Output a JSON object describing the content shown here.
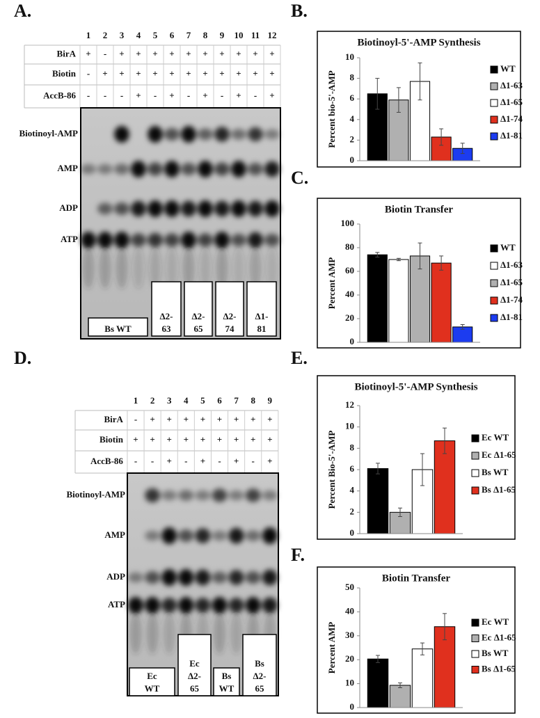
{
  "gel_a": {
    "label": "A.",
    "lanes": [
      "1",
      "2",
      "3",
      "4",
      "5",
      "6",
      "7",
      "8",
      "9",
      "10",
      "11",
      "12"
    ],
    "rows": [
      {
        "name": "BirA",
        "marks": [
          "+",
          "-",
          "+",
          "+",
          "+",
          "+",
          "+",
          "+",
          "+",
          "+",
          "+",
          "+"
        ]
      },
      {
        "name": "Biotin",
        "marks": [
          "-",
          "+",
          "+",
          "+",
          "+",
          "+",
          "+",
          "+",
          "+",
          "+",
          "+",
          "+"
        ]
      },
      {
        "name": "AccB-86",
        "marks": [
          "-",
          "-",
          "-",
          "+",
          "-",
          "+",
          "-",
          "+",
          "-",
          "+",
          "-",
          "+"
        ]
      }
    ],
    "bands": [
      "Biotinoyl-AMP",
      "AMP",
      "ADP",
      "ATP"
    ],
    "boxes": [
      {
        "lines": [
          "Bs WT"
        ]
      },
      {
        "lines": [
          "Δ2-",
          "63"
        ]
      },
      {
        "lines": [
          "Δ2-",
          "65"
        ]
      },
      {
        "lines": [
          "Δ2-",
          "74"
        ]
      },
      {
        "lines": [
          "Δ1-",
          "81"
        ]
      }
    ]
  },
  "gel_d": {
    "label": "D.",
    "lanes": [
      "1",
      "2",
      "3",
      "4",
      "5",
      "6",
      "7",
      "8",
      "9"
    ],
    "rows": [
      {
        "name": "BirA",
        "marks": [
          "-",
          "+",
          "+",
          "+",
          "+",
          "+",
          "+",
          "+",
          "+"
        ]
      },
      {
        "name": "Biotin",
        "marks": [
          "+",
          "+",
          "+",
          "+",
          "+",
          "+",
          "+",
          "+",
          "+"
        ]
      },
      {
        "name": "AccB-86",
        "marks": [
          "-",
          "-",
          "+",
          "-",
          "+",
          "-",
          "+",
          "-",
          "+"
        ]
      }
    ],
    "bands": [
      "Biotinoyl-AMP",
      "AMP",
      "ADP",
      "ATP"
    ],
    "boxes": [
      {
        "lines": [
          "Ec",
          "WT"
        ]
      },
      {
        "lines": [
          "Ec",
          "Δ2-",
          "65"
        ]
      },
      {
        "lines": [
          "Bs",
          "WT"
        ]
      },
      {
        "lines": [
          "Bs",
          "Δ2-",
          "65"
        ]
      }
    ]
  },
  "chart_data": [
    {
      "type": "bar",
      "label": "B.",
      "title": "Biotinoyl-5'-AMP Synthesis",
      "ylabel": "Percent bio-5'-AMP",
      "categories": [
        "WT",
        "Δ1-63",
        "Δ1-65",
        "Δ1-74",
        "Δ1-81"
      ],
      "values": [
        6.5,
        5.9,
        7.7,
        2.3,
        1.2
      ],
      "errors": [
        1.5,
        1.2,
        1.8,
        0.8,
        0.5
      ],
      "colors": [
        "#000000",
        "#b0b0b0",
        "#ffffff",
        "#e0301e",
        "#1c3cf0"
      ],
      "ylim": [
        0,
        10
      ],
      "yticks": [
        0,
        2,
        4,
        6,
        8,
        10
      ]
    },
    {
      "type": "bar",
      "label": "C.",
      "title": "Biotin Transfer",
      "ylabel": "Percent AMP",
      "categories": [
        "WT",
        "Δ1-63",
        "Δ1-65",
        "Δ1-74",
        "Δ1-81"
      ],
      "values": [
        74,
        70,
        73,
        67,
        13
      ],
      "errors": [
        2,
        1,
        11,
        6,
        2
      ],
      "colors": [
        "#000000",
        "#ffffff",
        "#b0b0b0",
        "#e0301e",
        "#1c3cf0"
      ],
      "ylim": [
        0,
        100
      ],
      "yticks": [
        0,
        20,
        40,
        60,
        80,
        100
      ]
    },
    {
      "type": "bar",
      "label": "E.",
      "title": "Biotinoyl-5'-AMP Synthesis",
      "ylabel": "Percent Bio-5'-AMP",
      "categories": [
        "Ec WT",
        "Ec Δ1-65",
        "Bs WT",
        "Bs Δ1-65"
      ],
      "values": [
        6.1,
        2.0,
        6.0,
        8.7
      ],
      "errors": [
        0.5,
        0.4,
        1.5,
        1.2
      ],
      "colors": [
        "#000000",
        "#b0b0b0",
        "#ffffff",
        "#e0301e"
      ],
      "ylim": [
        0,
        12
      ],
      "yticks": [
        0,
        2,
        4,
        6,
        8,
        10,
        12
      ]
    },
    {
      "type": "bar",
      "label": "F.",
      "title": "Biotin Transfer",
      "ylabel": "Percent AMP",
      "categories": [
        "Ec WT",
        "Ec Δ1-65",
        "Bs WT",
        "Bs Δ1-65"
      ],
      "values": [
        20.3,
        9.3,
        24.5,
        33.8
      ],
      "errors": [
        1.5,
        1,
        2.5,
        5.5
      ],
      "colors": [
        "#000000",
        "#b0b0b0",
        "#ffffff",
        "#e0301e"
      ],
      "ylim": [
        0,
        50
      ],
      "yticks": [
        0,
        10,
        20,
        30,
        40,
        50
      ]
    }
  ]
}
